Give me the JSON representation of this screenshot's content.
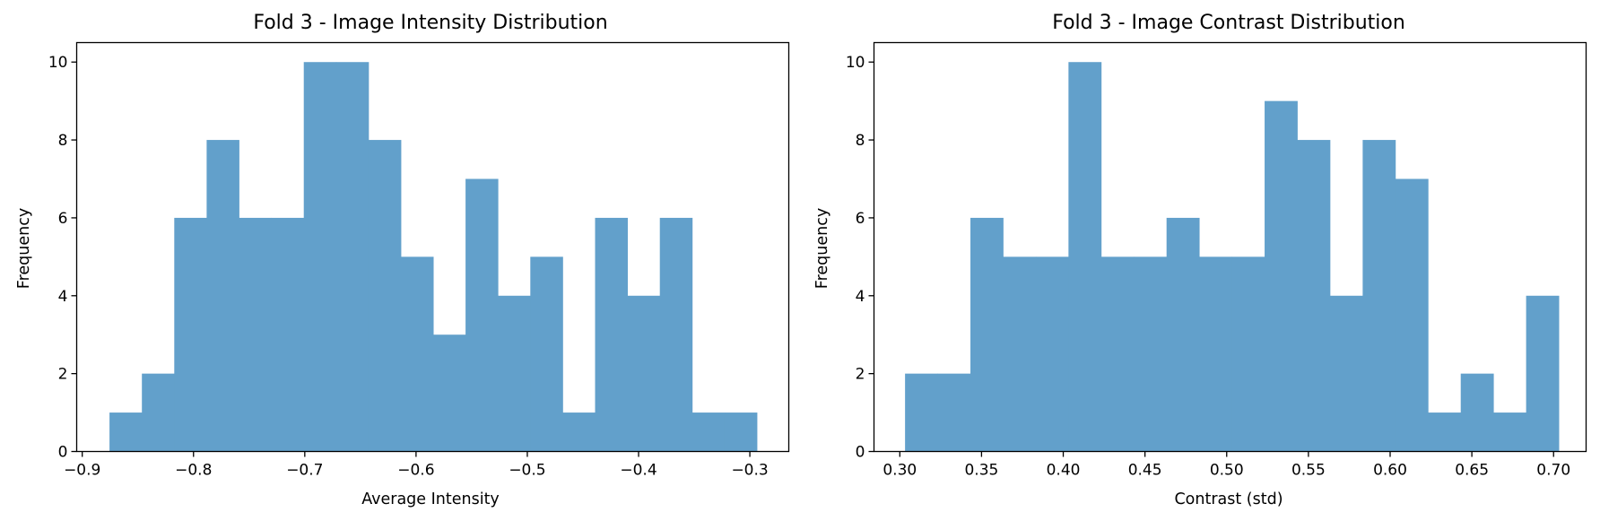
{
  "chart_data": [
    {
      "type": "histogram",
      "title": "Fold 3 - Image Intensity Distribution",
      "xlabel": "Average Intensity",
      "ylabel": "Frequency",
      "xlim": [
        -0.905,
        -0.265
      ],
      "ylim": [
        0,
        10.5
      ],
      "bin_edges": [
        -0.8755,
        -0.8464,
        -0.8173,
        -0.7882,
        -0.7591,
        -0.73,
        -0.7009,
        -0.6718,
        -0.6427,
        -0.6136,
        -0.5845,
        -0.5555,
        -0.5264,
        -0.4973,
        -0.4682,
        -0.4391,
        -0.41,
        -0.3809,
        -0.3518,
        -0.3227,
        -0.2936
      ],
      "counts": [
        1,
        2,
        6,
        8,
        6,
        6,
        10,
        10,
        8,
        5,
        3,
        7,
        4,
        5,
        1,
        6,
        4,
        6,
        1,
        1
      ],
      "xticks": [
        -0.9,
        -0.8,
        -0.7,
        -0.6,
        -0.5,
        -0.4,
        -0.3
      ],
      "xtick_labels": [
        "−0.9",
        "−0.8",
        "−0.7",
        "−0.6",
        "−0.5",
        "−0.4",
        "−0.3"
      ],
      "yticks": [
        0,
        2,
        4,
        6,
        8,
        10
      ],
      "ytick_labels": [
        "0",
        "2",
        "4",
        "6",
        "8",
        "10"
      ],
      "bar_color": "#62a0cb",
      "grid": false
    },
    {
      "type": "histogram",
      "title": "Fold 3 - Image Contrast Distribution",
      "xlabel": "Contrast (std)",
      "ylabel": "Frequency",
      "xlim": [
        0.2842,
        0.7199
      ],
      "ylim": [
        0,
        10.5
      ],
      "bin_edges": [
        0.3032,
        0.3232,
        0.3432,
        0.3632,
        0.3832,
        0.4032,
        0.4232,
        0.4432,
        0.4632,
        0.4832,
        0.5032,
        0.5232,
        0.5432,
        0.5632,
        0.5832,
        0.6032,
        0.6232,
        0.6432,
        0.6632,
        0.6832,
        0.7032
      ],
      "counts": [
        2,
        2,
        6,
        5,
        5,
        10,
        5,
        5,
        6,
        5,
        5,
        9,
        8,
        4,
        8,
        7,
        1,
        2,
        1,
        4
      ],
      "xticks": [
        0.3,
        0.35,
        0.4,
        0.45,
        0.5,
        0.55,
        0.6,
        0.65,
        0.7
      ],
      "xtick_labels": [
        "0.30",
        "0.35",
        "0.40",
        "0.45",
        "0.50",
        "0.55",
        "0.60",
        "0.65",
        "0.70"
      ],
      "yticks": [
        0,
        2,
        4,
        6,
        8,
        10
      ],
      "ytick_labels": [
        "0",
        "2",
        "4",
        "6",
        "8",
        "10"
      ],
      "bar_color": "#62a0cb",
      "grid": false
    }
  ]
}
